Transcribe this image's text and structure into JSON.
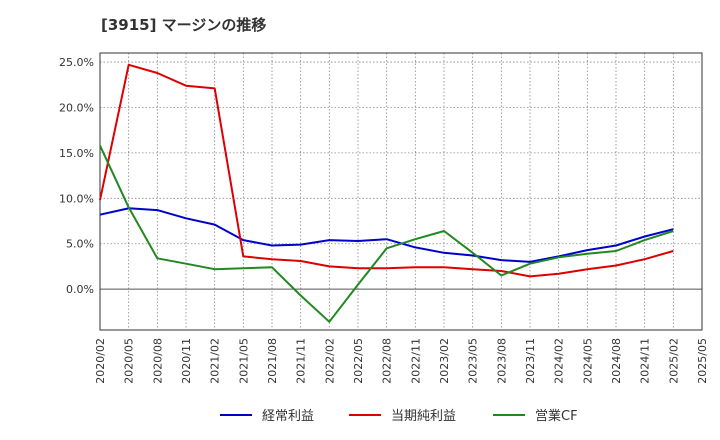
{
  "chart_data": {
    "type": "line",
    "title": "[3915]  マージンの推移",
    "xlabel": "",
    "ylabel": "",
    "ylim": [
      -4.5,
      26
    ],
    "yticks": [
      0,
      5,
      10,
      15,
      20,
      25
    ],
    "ytick_labels": [
      "0.0%",
      "5.0%",
      "10.0%",
      "15.0%",
      "20.0%",
      "25.0%"
    ],
    "categories": [
      "2020/02",
      "2020/05",
      "2020/08",
      "2020/11",
      "2021/02",
      "2021/05",
      "2021/08",
      "2021/11",
      "2022/02",
      "2022/05",
      "2022/08",
      "2022/11",
      "2023/02",
      "2023/05",
      "2023/08",
      "2023/11",
      "2024/02",
      "2024/05",
      "2024/08",
      "2024/11",
      "2025/02",
      "2025/05"
    ],
    "grid": true,
    "legend_position": "bottom",
    "series": [
      {
        "name": "経常利益",
        "color": "#0000cc",
        "values": [
          8.2,
          8.9,
          8.7,
          7.8,
          7.1,
          5.4,
          4.8,
          4.9,
          5.4,
          5.3,
          5.5,
          4.6,
          4.0,
          3.7,
          3.2,
          3.0,
          3.6,
          4.3,
          4.8,
          5.8,
          6.6,
          null
        ]
      },
      {
        "name": "当期純利益",
        "color": "#dd0000",
        "values": [
          9.8,
          24.7,
          23.8,
          22.4,
          22.1,
          3.6,
          3.3,
          3.1,
          2.5,
          2.3,
          2.3,
          2.4,
          2.4,
          2.2,
          2.0,
          1.4,
          1.7,
          2.2,
          2.6,
          3.3,
          4.2,
          null
        ]
      },
      {
        "name": "営業CF",
        "color": "#228822",
        "values": [
          15.8,
          9.0,
          3.4,
          2.8,
          2.2,
          2.3,
          2.4,
          -0.7,
          -3.6,
          0.5,
          4.5,
          5.5,
          6.4,
          4.0,
          1.5,
          2.8,
          3.5,
          3.9,
          4.2,
          5.4,
          6.4,
          null
        ]
      }
    ]
  }
}
